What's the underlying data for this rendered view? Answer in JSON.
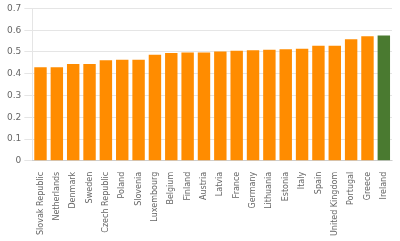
{
  "chart_data": {
    "type": "bar",
    "categories": [
      "Slovak Republic",
      "Netherlands",
      "Denmark",
      "Sweden",
      "Czech Republic",
      "Poland",
      "Slovenia",
      "Luxembourg",
      "Belgium",
      "Finland",
      "Austria",
      "Latvia",
      "France",
      "Germany",
      "Lithuania",
      "Estonia",
      "Italy",
      "Spain",
      "United Kingdom",
      "Portugal",
      "Greece",
      "Ireland"
    ],
    "values": [
      0.43,
      0.43,
      0.445,
      0.445,
      0.462,
      0.464,
      0.464,
      0.487,
      0.495,
      0.497,
      0.497,
      0.502,
      0.505,
      0.508,
      0.51,
      0.512,
      0.515,
      0.528,
      0.528,
      0.558,
      0.572,
      0.575
    ],
    "colors": [
      "#FF8C00",
      "#FF8C00",
      "#FF8C00",
      "#FF8C00",
      "#FF8C00",
      "#FF8C00",
      "#FF8C00",
      "#FF8C00",
      "#FF8C00",
      "#FF8C00",
      "#FF8C00",
      "#FF8C00",
      "#FF8C00",
      "#FF8C00",
      "#FF8C00",
      "#FF8C00",
      "#FF8C00",
      "#FF8C00",
      "#FF8C00",
      "#FF8C00",
      "#FF8C00",
      "#4A7A30"
    ],
    "ylim": [
      0,
      0.7
    ],
    "yticks": [
      0,
      0.1,
      0.2,
      0.3,
      0.4,
      0.5,
      0.6,
      0.7
    ],
    "grid": true
  }
}
